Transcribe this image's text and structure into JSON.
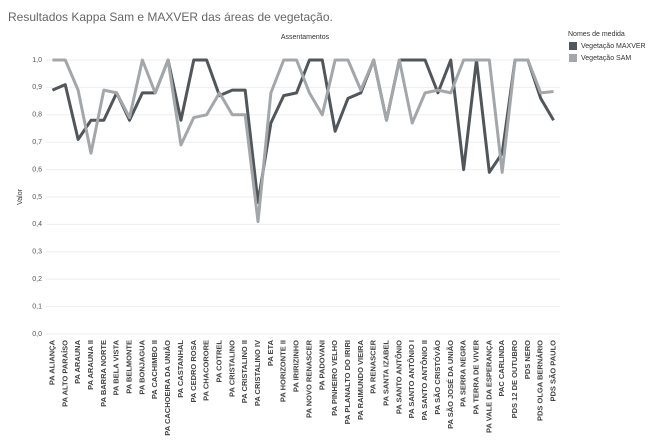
{
  "chart_data": {
    "type": "line",
    "title": "Resultados Kappa Sam e MAXVER das áreas de vegetação.",
    "x_axis_title": "Assentamentos",
    "y_axis_title": "Valor",
    "legend_title": "Nomes de medida",
    "categories": [
      "PA ALIANÇA",
      "PA ALTO PARAÍSO",
      "PA ARAUNA",
      "PA ARAUNA II",
      "PA BARRA NORTE",
      "PA BELA VISTA",
      "PA BELMONTE",
      "PA BONJAGUA",
      "PA CACHIMBO II",
      "PA CACHOEIRA DA UNIÃO",
      "PA CASTANHAL",
      "PA CEDRO ROSA",
      "PA CHACORORE",
      "PA COTREL",
      "PA CRISTALINO",
      "PA CRISTALINO II",
      "PA CRISTALINO IV",
      "PA ETA",
      "PA HORIZONTE II",
      "PA IRIRIZINHO",
      "PA NOVO RENASCER",
      "PA PADOVANI",
      "PA PINHEIRO VELHO",
      "PA PLANALTO DO IRIRI",
      "PA RAIMUNDO VIEIRA",
      "PA RENASCER",
      "PA SANTA IZABEL",
      "PA SANTO ANTÔNIO",
      "PA SANTO ANTÔNIO I",
      "PA SANTO ANTÔNIO II",
      "PA SÃO CRISTÓVÃO",
      "PA SÃO JOSÉ DA UNIÃO",
      "PA SERRA NEGRA",
      "PA TERRA DE VIVER",
      "PA VALE DA ESPERANÇA",
      "PAC CARLINDA",
      "PDS 12 DE OUTUBRO",
      "PDS NERO",
      "PDS OLGA BERNÁRIO",
      "PDS SÃO PAULO"
    ],
    "series": [
      {
        "name": "Vegetação MAXVER",
        "color": "#51565b",
        "values": [
          0.89,
          0.91,
          0.71,
          0.78,
          0.78,
          0.88,
          0.78,
          0.88,
          0.88,
          1.0,
          0.78,
          1.0,
          1.0,
          0.87,
          0.89,
          0.89,
          0.48,
          0.77,
          0.87,
          0.88,
          1.0,
          1.0,
          0.74,
          0.86,
          0.88,
          1.0,
          0.78,
          1.0,
          1.0,
          1.0,
          0.88,
          1.0,
          0.6,
          1.0,
          0.59,
          0.66,
          1.0,
          1.0,
          0.86,
          0.78
        ]
      },
      {
        "name": "Vegetação SAM",
        "color": "#a4a7aa",
        "values": [
          1.0,
          1.0,
          0.89,
          0.66,
          0.89,
          0.88,
          0.79,
          1.0,
          0.88,
          1.0,
          0.69,
          0.79,
          0.8,
          0.88,
          0.8,
          0.8,
          0.41,
          0.88,
          1.0,
          1.0,
          0.88,
          0.8,
          1.0,
          1.0,
          0.89,
          1.0,
          0.78,
          1.0,
          0.77,
          0.88,
          0.89,
          0.88,
          1.0,
          1.0,
          1.0,
          0.59,
          1.0,
          1.0,
          0.88,
          0.885
        ]
      }
    ],
    "ylim": [
      0,
      1
    ],
    "yticks": [
      {
        "value": 0,
        "label": "0,0"
      },
      {
        "value": 0.1,
        "label": "0,1"
      },
      {
        "value": 0.2,
        "label": "0,2"
      },
      {
        "value": 0.3,
        "label": "0,3"
      },
      {
        "value": 0.4,
        "label": "0,4"
      },
      {
        "value": 0.5,
        "label": "0,5"
      },
      {
        "value": 0.6,
        "label": "0,6"
      },
      {
        "value": 0.7,
        "label": "0,7"
      },
      {
        "value": 0.8,
        "label": "0,8"
      },
      {
        "value": 0.9,
        "label": "0,9"
      },
      {
        "value": 1,
        "label": "1,0"
      }
    ],
    "grid": true,
    "legend": "right"
  }
}
